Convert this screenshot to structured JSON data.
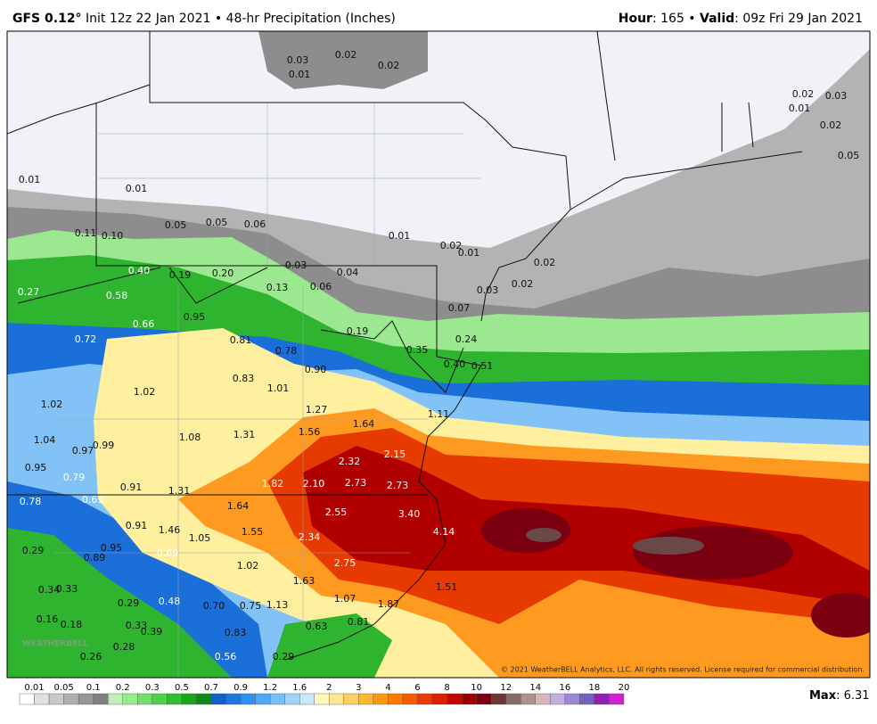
{
  "header": {
    "model": "GFS 0.12°",
    "init": "Init 12z 22 Jan 2021 • 48-hr Precipitation (Inches)",
    "hour_key": "Hour",
    "hour_val": ": 165 • ",
    "valid_key": "Valid",
    "valid_val": ": 09z Fri 29 Jan 2021"
  },
  "map": {
    "watermark": "WEATHERBELL",
    "copyright": "© 2021 WeatherBELL Analytics, LLC. All rights reserved. License required for commercial distribution.",
    "labels": [
      "0.03",
      "0.02",
      "0.02",
      "0.01",
      "0.02",
      "0.03",
      "0.01",
      "0.02",
      "0.05",
      "0.01",
      "0.01",
      "0.05",
      "0.05",
      "0.06",
      "0.11",
      "0.10",
      "0.01",
      "0.02",
      "0.01",
      "0.02",
      "0.03",
      "0.04",
      "0.40",
      "0.19",
      "0.20",
      "0.13",
      "0.06",
      "0.27",
      "0.58",
      "0.03",
      "0.02",
      "0.07",
      "0.95",
      "0.66",
      "0.19",
      "0.72",
      "0.81",
      "0.24",
      "0.78",
      "0.35",
      "0.90",
      "0.40",
      "0.51",
      "0.83",
      "1.01",
      "1.02",
      "1.02",
      "1.27",
      "1.11",
      "1.64",
      "1.56",
      "1.31",
      "1.08",
      "1.04",
      "0.97",
      "0.99",
      "2.15",
      "0.95",
      "2.32",
      "0.79",
      "1.82",
      "2.10",
      "2.73",
      "2.73",
      "0.91",
      "1.31",
      "0.78",
      "0.63",
      "1.64",
      "2.55",
      "3.40",
      "0.91",
      "1.46",
      "1.55",
      "1.05",
      "2.34",
      "4.14",
      "0.95",
      "0.29",
      "0.89",
      "0.69",
      "1.02",
      "2.75",
      "1.63",
      "1.51",
      "0.33",
      "0.34",
      "1.07",
      "1.87",
      "0.29",
      "0.48",
      "0.70",
      "0.75",
      "1.13",
      "0.16",
      "0.18",
      "0.81",
      "0.33",
      "0.39",
      "0.63",
      "0.83",
      "0.28",
      "0.26",
      "0.56",
      "0.29"
    ]
  },
  "legend": {
    "ticks": [
      "0.01",
      "0.05",
      "0.1",
      "0.2",
      "0.3",
      "0.5",
      "0.7",
      "0.9",
      "1.2",
      "1.6",
      "2",
      "3",
      "4",
      "6",
      "8",
      "10",
      "12",
      "14",
      "16",
      "18",
      "20"
    ],
    "colors": [
      "#ffffff",
      "#e0e0e0",
      "#c8c8c8",
      "#b0b0b0",
      "#989898",
      "#808080",
      "#b8f4b0",
      "#96eb8c",
      "#74e06a",
      "#52d04a",
      "#32bd32",
      "#1ba51b",
      "#0d8a18",
      "#1060c8",
      "#1a78e0",
      "#3090f0",
      "#50a8f8",
      "#78c0fa",
      "#a0d4fc",
      "#c8e8fe",
      "#fff6b8",
      "#ffe890",
      "#ffd060",
      "#ffb830",
      "#ff9a10",
      "#ff7a00",
      "#f85a00",
      "#ee3a00",
      "#dd1e00",
      "#c00a00",
      "#9c0000",
      "#7a0010",
      "#6a3838",
      "#8a6a6a",
      "#b09090",
      "#d4b8b8",
      "#c0b0e0",
      "#9a88d0",
      "#7860c0",
      "#9020b0",
      "#d020d0"
    ],
    "max_key": "Max",
    "max_val": ": 6.31"
  }
}
